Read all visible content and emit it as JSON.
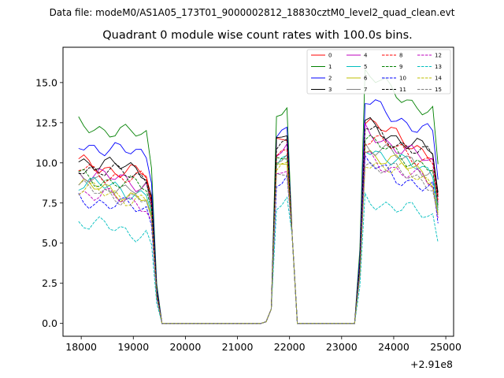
{
  "chart_data": {
    "type": "line",
    "suptitle": "Data file: modeM0/AS1A05_173T01_9000002812_18830cztM0_level2_quad_clean.evt",
    "title": "Quadrant 0 module wise count rates with 100.0s bins.",
    "xlabel": "",
    "ylabel": "",
    "x_offset_label": "+2.91e8",
    "xlim": [
      17650,
      25150
    ],
    "ylim": [
      -0.8,
      17.2
    ],
    "xticks": [
      18000,
      19000,
      20000,
      21000,
      22000,
      23000,
      24000,
      25000
    ],
    "xtick_labels": [
      "18000",
      "19000",
      "20000",
      "21000",
      "22000",
      "23000",
      "24000",
      "25000"
    ],
    "yticks": [
      0,
      2.5,
      5,
      7.5,
      10,
      12.5,
      15
    ],
    "ytick_labels": [
      "0.0",
      "2.5",
      "5.0",
      "7.5",
      "10.0",
      "12.5",
      "15.0"
    ],
    "legend_position": "top-right",
    "series": [
      {
        "name": "0",
        "color": "#ff0000",
        "dash": false,
        "levels": [
          10.0,
          11.3,
          12.6
        ]
      },
      {
        "name": "1",
        "color": "#008000",
        "dash": false,
        "levels": [
          12.4,
          13.1,
          15.5
        ]
      },
      {
        "name": "2",
        "color": "#0000ff",
        "dash": false,
        "levels": [
          11.2,
          11.8,
          13.8
        ]
      },
      {
        "name": "3",
        "color": "#000000",
        "dash": false,
        "levels": [
          10.2,
          11.5,
          12.4
        ]
      },
      {
        "name": "4",
        "color": "#bf00bf",
        "dash": false,
        "levels": [
          9.4,
          10.6,
          12.0
        ]
      },
      {
        "name": "5",
        "color": "#00bfbf",
        "dash": false,
        "levels": [
          8.8,
          9.8,
          11.0
        ]
      },
      {
        "name": "6",
        "color": "#bfbf00",
        "dash": false,
        "levels": [
          8.6,
          9.6,
          10.8
        ]
      },
      {
        "name": "7",
        "color": "#808080",
        "dash": false,
        "levels": [
          9.0,
          10.0,
          11.2
        ]
      },
      {
        "name": "8",
        "color": "#ff0000",
        "dash": true,
        "levels": [
          9.6,
          10.4,
          11.6
        ]
      },
      {
        "name": "9",
        "color": "#008000",
        "dash": true,
        "levels": [
          9.2,
          10.2,
          11.4
        ]
      },
      {
        "name": "10",
        "color": "#0000ff",
        "dash": true,
        "levels": [
          7.8,
          8.8,
          10.0
        ]
      },
      {
        "name": "11",
        "color": "#000000",
        "dash": true,
        "levels": [
          9.8,
          11.0,
          12.2
        ]
      },
      {
        "name": "12",
        "color": "#bf00bf",
        "dash": true,
        "levels": [
          8.2,
          9.2,
          10.4
        ]
      },
      {
        "name": "13",
        "color": "#00bfbf",
        "dash": true,
        "levels": [
          6.3,
          7.2,
          7.8
        ]
      },
      {
        "name": "14",
        "color": "#bfbf00",
        "dash": true,
        "levels": [
          8.4,
          9.4,
          10.2
        ]
      },
      {
        "name": "15",
        "color": "#808080",
        "dash": true,
        "levels": [
          8.4,
          9.0,
          10.0
        ]
      }
    ]
  }
}
